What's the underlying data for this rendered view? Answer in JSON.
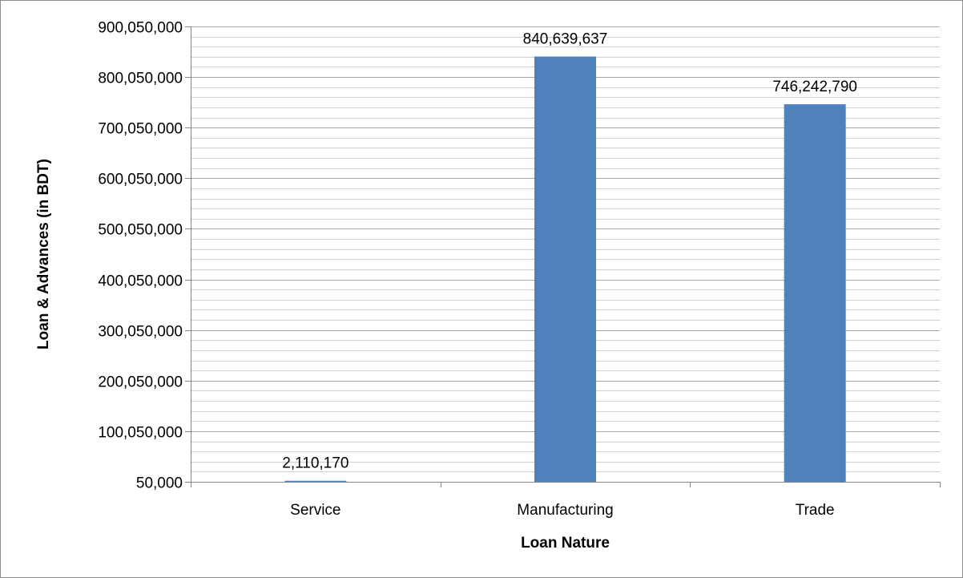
{
  "chart_data": {
    "type": "bar",
    "categories": [
      "Service",
      "Manufacturing",
      "Trade"
    ],
    "values": [
      2110170,
      840639637,
      746242790
    ],
    "value_labels": [
      "2,110,170",
      "840,639,637",
      "746,242,790"
    ],
    "xlabel": "Loan Nature",
    "ylabel": "Loan  & Advances (in BDT)",
    "ylim": [
      50000,
      900050000
    ],
    "major_step": 100000000,
    "minor_per_major": 5,
    "yticks": [
      50000,
      100050000,
      200050000,
      300050000,
      400050000,
      500050000,
      600050000,
      700050000,
      800050000,
      900050000
    ],
    "ytick_labels": [
      "50,000",
      "100,050,000",
      "200,050,000",
      "300,050,000",
      "400,050,000",
      "500,050,000",
      "600,050,000",
      "700,050,000",
      "800,050,000",
      "900,050,000"
    ],
    "grid": true,
    "legend": "none",
    "colors": {
      "bar": "#4f81bd",
      "grid": "#a6a6a6",
      "axis": "#868686"
    }
  }
}
